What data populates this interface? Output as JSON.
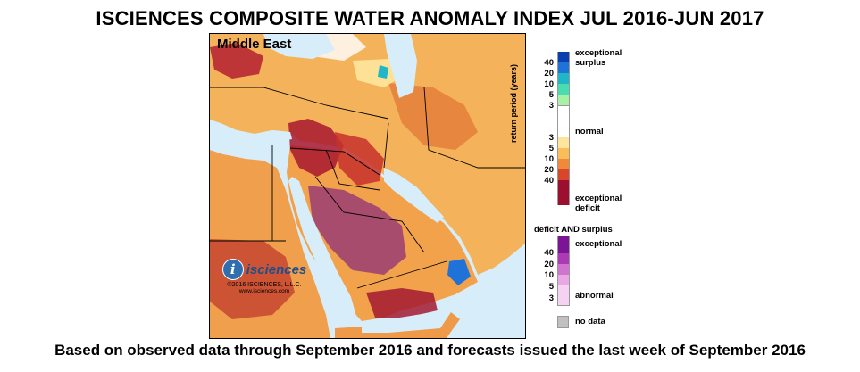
{
  "title": "ISCIENCES COMPOSITE WATER ANOMALY INDEX JUL 2016-JUN 2017",
  "footer": "Based on observed data through September 2016 and forecasts issued the last week of September 2016",
  "map": {
    "region": "Middle East",
    "water_color": "#d7eefa",
    "border_color": "#000000"
  },
  "brand": {
    "name": "isciences",
    "copyright": "©2016 ISCIENCES, L.L.C.",
    "url": "www.isciences.com"
  },
  "legend": {
    "axis_label": "return period (years)",
    "surplus_label_1": "exceptional",
    "surplus_label_2": "surplus",
    "normal_label": "normal",
    "deficit_label_1": "exceptional",
    "deficit_label_2": "deficit",
    "both_header": "deficit AND surplus",
    "both_top_label": "exceptional",
    "both_bottom_label": "abnormal",
    "no_data_label": "no data",
    "surplus_ticks": [
      "40",
      "20",
      "10",
      "5",
      "3"
    ],
    "deficit_ticks": [
      "3",
      "5",
      "10",
      "20",
      "40"
    ],
    "both_ticks": [
      "40",
      "20",
      "10",
      "5",
      "3"
    ],
    "colors": {
      "surplus": [
        "#0a3fb0",
        "#1f73d8",
        "#1fb6c8",
        "#49dcb0",
        "#a8f0a4",
        "#ffffff"
      ],
      "deficit": [
        "#ffffff",
        "#fde59c",
        "#fbbd57",
        "#f08a38",
        "#d8472c",
        "#9d0f2e"
      ],
      "both": [
        "#7b1596",
        "#ab3ab4",
        "#cf75cf",
        "#e8a8e4",
        "#f5d2f1"
      ],
      "no_data": "#c0c0c0"
    }
  }
}
